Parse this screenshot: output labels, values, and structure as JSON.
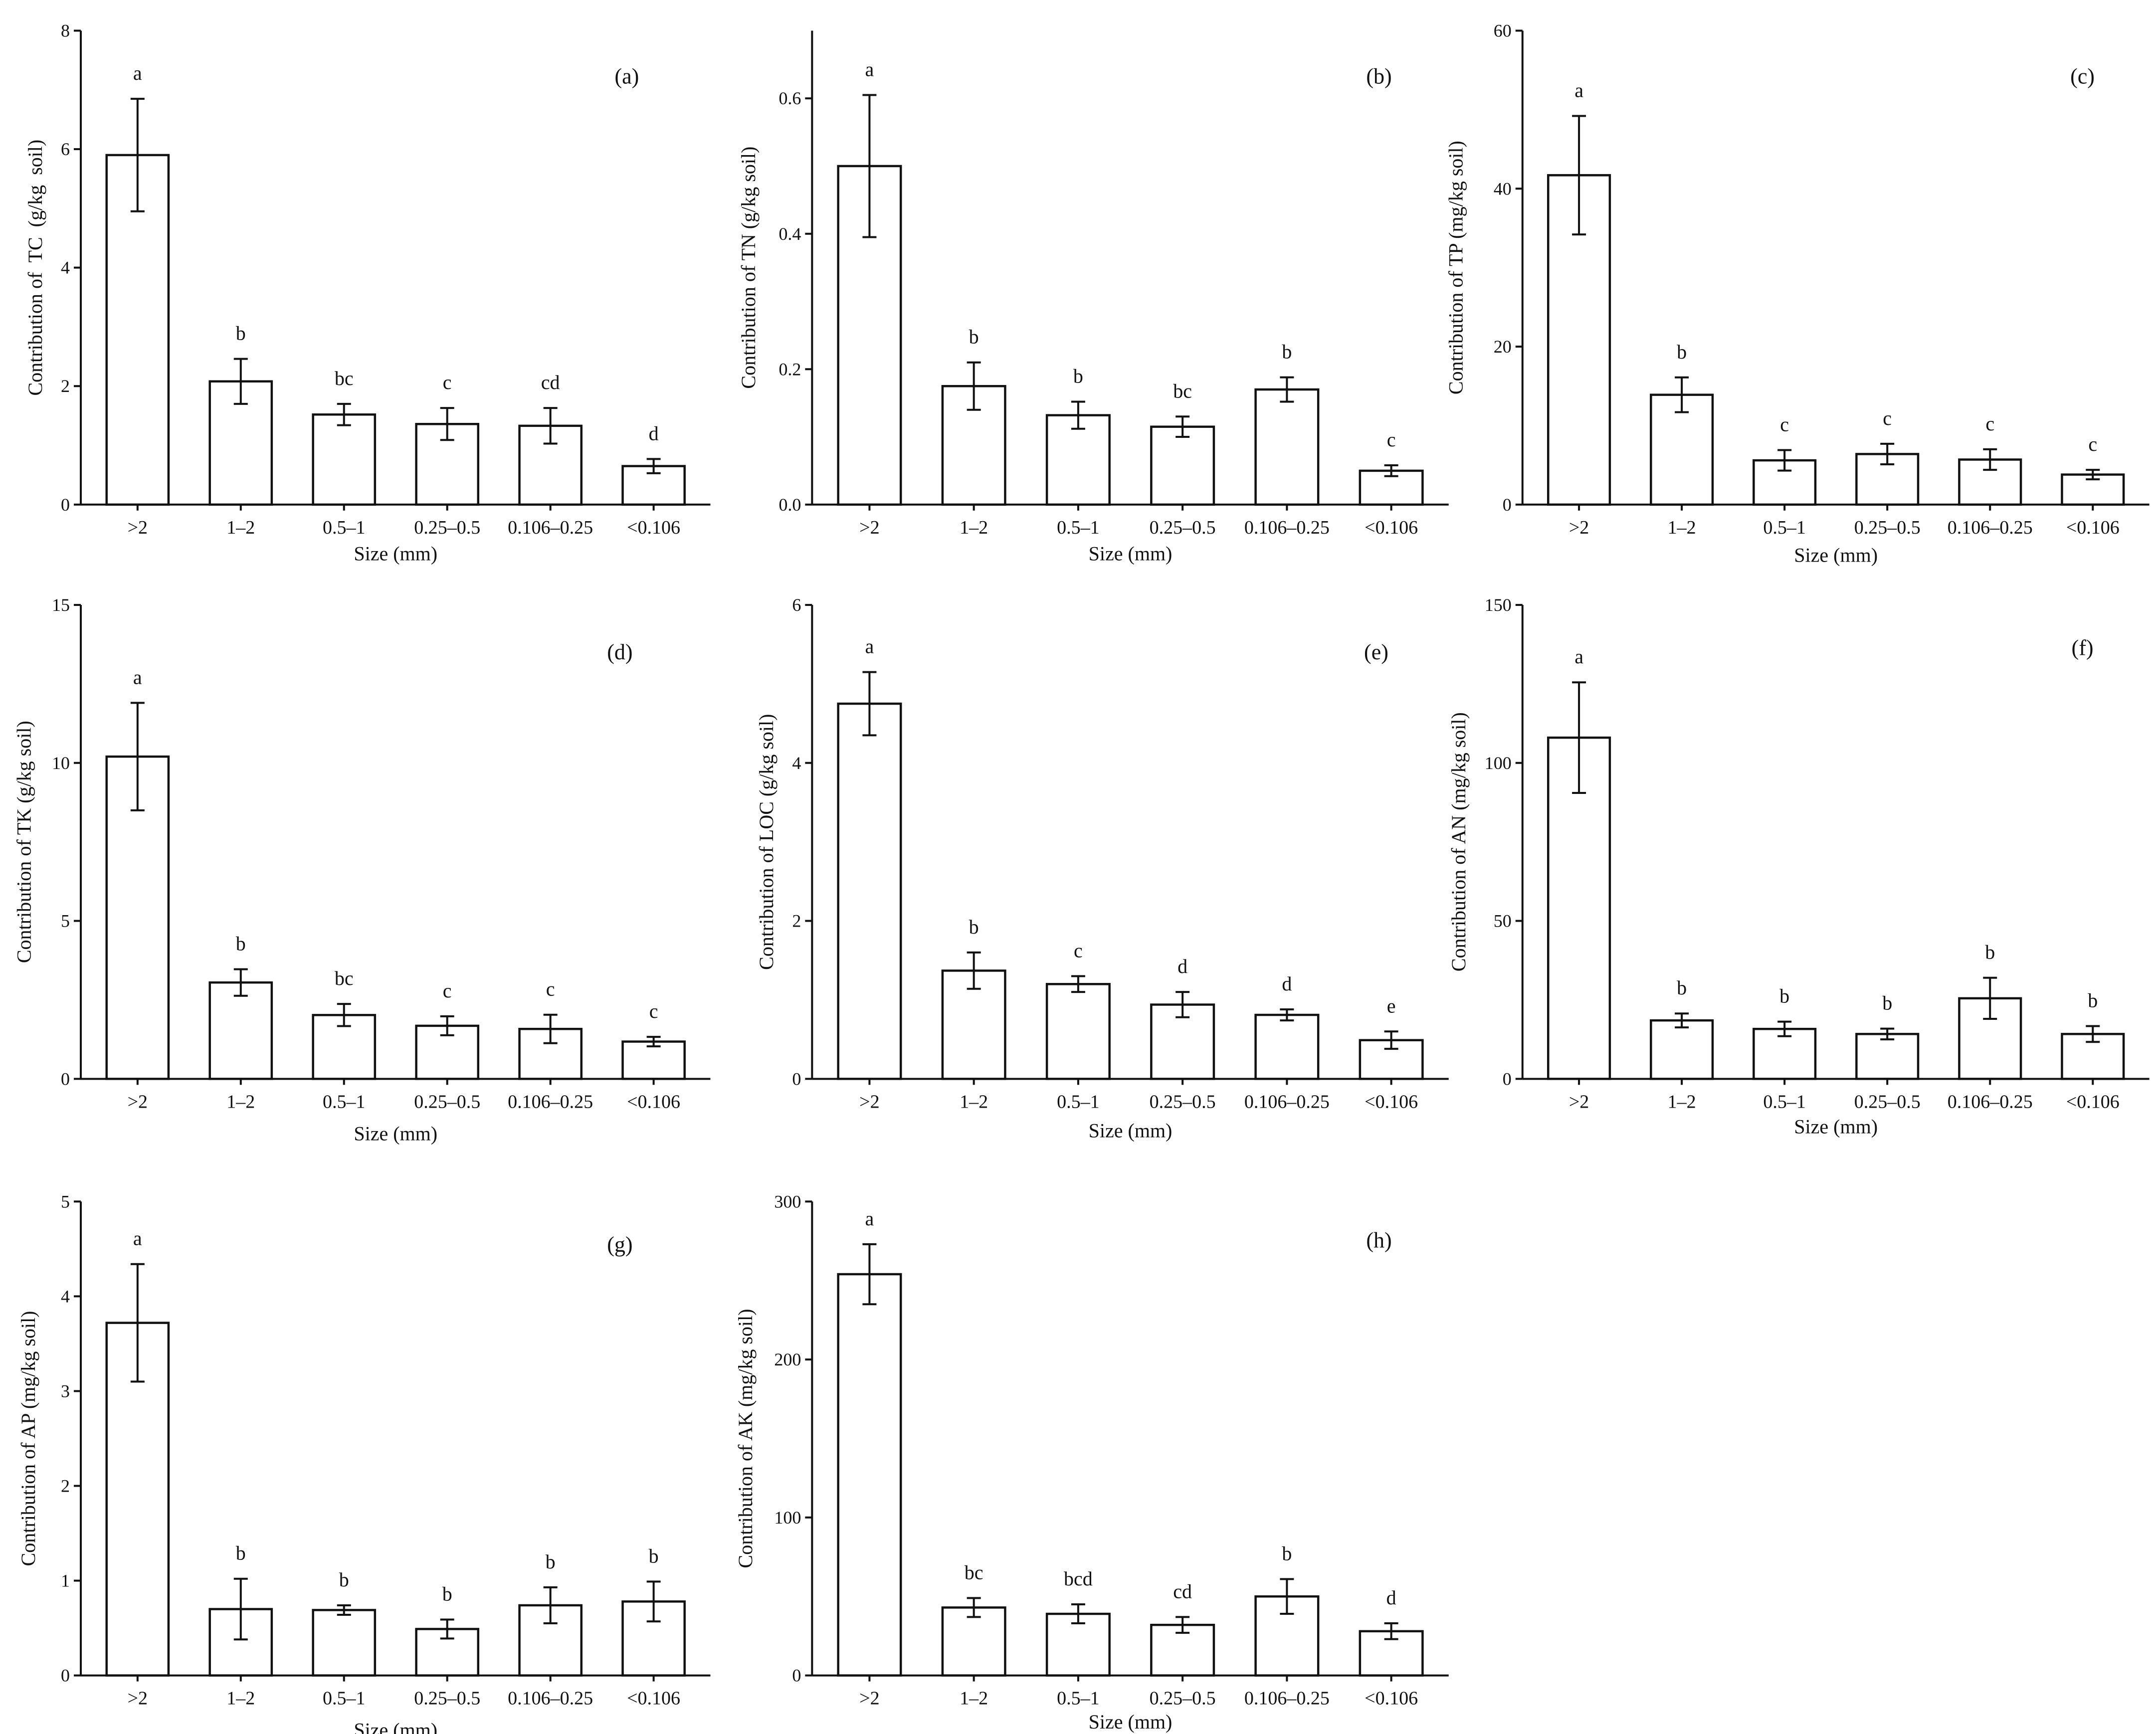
{
  "chart_data": [
    {
      "type": "bar",
      "panel": "(a)",
      "categories": [
        ">2",
        "1–2",
        "0.5–1",
        "0.25–0.5",
        "0.106–0.25",
        "<0.106"
      ],
      "values": [
        5.9,
        2.08,
        1.52,
        1.36,
        1.33,
        0.65
      ],
      "errors": [
        0.95,
        0.38,
        0.18,
        0.27,
        0.3,
        0.12
      ],
      "letters": [
        "a",
        "b",
        "bc",
        "c",
        "cd",
        "d"
      ],
      "ylabel": "Contribution of  TC  (g/kg  soil)",
      "xlabel": "Size (mm)",
      "ylim": [
        0,
        8
      ],
      "yticks": [
        0,
        2,
        4,
        6,
        8
      ]
    },
    {
      "type": "bar",
      "panel": "(b)",
      "categories": [
        ">2",
        "1–2",
        "0.5–1",
        "0.25–0.5",
        "0.106–0.25",
        "<0.106"
      ],
      "values": [
        0.5,
        0.175,
        0.132,
        0.115,
        0.17,
        0.05
      ],
      "errors": [
        0.105,
        0.035,
        0.02,
        0.015,
        0.018,
        0.008
      ],
      "letters": [
        "a",
        "b",
        "b",
        "bc",
        "b",
        "c"
      ],
      "ylabel": "Contribution of TN (g/kg soil)",
      "xlabel": "Size (mm)",
      "ylim": [
        0,
        0.7
      ],
      "yticks": [
        0.0,
        0.2,
        0.4,
        0.6
      ]
    },
    {
      "type": "bar",
      "panel": "(c)",
      "categories": [
        ">2",
        "1–2",
        "0.5–1",
        "0.25–0.5",
        "0.106–0.25",
        "<0.106"
      ],
      "values": [
        41.7,
        13.9,
        5.6,
        6.4,
        5.7,
        3.8
      ],
      "errors": [
        7.5,
        2.2,
        1.3,
        1.3,
        1.3,
        0.6
      ],
      "letters": [
        "a",
        "b",
        "c",
        "c",
        "c",
        "c"
      ],
      "ylabel": "Contribution of TP (mg/kg soil)",
      "xlabel": "Size (mm)",
      "ylim": [
        0,
        60
      ],
      "yticks": [
        0,
        20,
        40,
        60
      ]
    },
    {
      "type": "bar",
      "panel": "(d)",
      "categories": [
        ">2",
        "1–2",
        "0.5–1",
        "0.25–0.5",
        "0.106–0.25",
        "<0.106"
      ],
      "values": [
        10.2,
        3.05,
        2.02,
        1.68,
        1.58,
        1.18
      ],
      "errors": [
        1.7,
        0.42,
        0.35,
        0.3,
        0.45,
        0.15
      ],
      "letters": [
        "a",
        "b",
        "bc",
        "c",
        "c",
        "c"
      ],
      "ylabel": "Contribution of TK (g/kg soil)",
      "xlabel": "Size (mm)",
      "ylim": [
        0,
        15
      ],
      "yticks": [
        0,
        5,
        10,
        15
      ]
    },
    {
      "type": "bar",
      "panel": "(e)",
      "categories": [
        ">2",
        "1–2",
        "0.5–1",
        "0.25–0.5",
        "0.106–0.25",
        "<0.106"
      ],
      "values": [
        4.75,
        1.37,
        1.2,
        0.94,
        0.81,
        0.49
      ],
      "errors": [
        0.4,
        0.23,
        0.1,
        0.16,
        0.07,
        0.11
      ],
      "letters": [
        "a",
        "b",
        "c",
        "d",
        "d",
        "e"
      ],
      "ylabel": "Contribution of LOC (g/kg soil)",
      "xlabel": "Size (mm)",
      "ylim": [
        0,
        6
      ],
      "yticks": [
        0,
        2,
        4,
        6
      ]
    },
    {
      "type": "bar",
      "panel": "(f)",
      "categories": [
        ">2",
        "1–2",
        "0.5–1",
        "0.25–0.5",
        "0.106–0.25",
        "<0.106"
      ],
      "values": [
        108,
        18.5,
        15.8,
        14.2,
        25.5,
        14.2
      ],
      "errors": [
        17.5,
        2.2,
        2.3,
        1.7,
        6.5,
        2.5
      ],
      "letters": [
        "a",
        "b",
        "b",
        "b",
        "b",
        "b"
      ],
      "ylabel": "Contribution of AN (mg/kg soil)",
      "xlabel": "Size (mm)",
      "ylim": [
        0,
        150
      ],
      "yticks": [
        0,
        50,
        100,
        150
      ]
    },
    {
      "type": "bar",
      "panel": "(g)",
      "categories": [
        ">2",
        "1–2",
        "0.5–1",
        "0.25–0.5",
        "0.106–0.25",
        "<0.106"
      ],
      "values": [
        3.72,
        0.7,
        0.69,
        0.49,
        0.74,
        0.78
      ],
      "errors": [
        0.62,
        0.32,
        0.05,
        0.1,
        0.19,
        0.21
      ],
      "letters": [
        "a",
        "b",
        "b",
        "b",
        "b",
        "b"
      ],
      "ylabel": "Contribution of AP (mg/kg soil)",
      "xlabel": "Size (mm)",
      "ylim": [
        0,
        5
      ],
      "yticks": [
        0,
        1,
        2,
        3,
        4,
        5
      ]
    },
    {
      "type": "bar",
      "panel": "(h)",
      "categories": [
        ">2",
        "1–2",
        "0.5–1",
        "0.25–0.5",
        "0.106–0.25",
        "<0.106"
      ],
      "values": [
        254,
        43,
        39,
        32,
        50,
        28
      ],
      "errors": [
        19,
        6,
        6,
        5,
        11,
        5
      ],
      "letters": [
        "a",
        "bc",
        "bcd",
        "cd",
        "b",
        "d"
      ],
      "ylabel": "Contribution of AK (mg/kg soil)",
      "xlabel": "Size (mm)",
      "ylim": [
        0,
        300
      ],
      "yticks": [
        0,
        100,
        200,
        300
      ]
    }
  ]
}
